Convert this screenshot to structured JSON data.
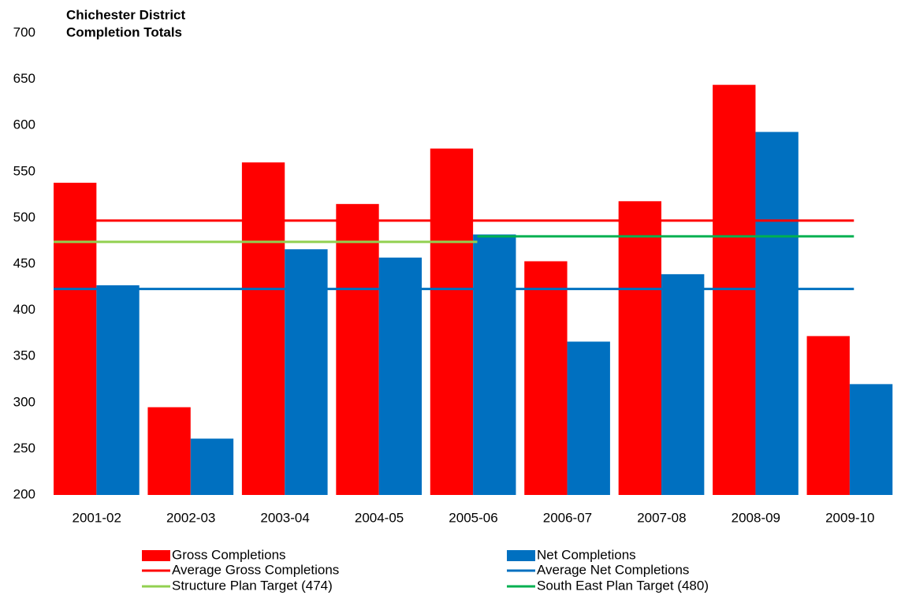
{
  "chart_data": {
    "type": "bar",
    "title": [
      "Chichester District",
      "Completion Totals"
    ],
    "categories": [
      "2001-02",
      "2002-03",
      "2003-04",
      "2004-05",
      "2005-06",
      "2006-07",
      "2007-08",
      "2008-09",
      "2009-10"
    ],
    "series": [
      {
        "name": "Gross Completions",
        "type": "bar",
        "color": "#ff0000",
        "values": [
          538,
          295,
          560,
          515,
          575,
          453,
          518,
          644,
          372
        ]
      },
      {
        "name": "Net Completions",
        "type": "bar",
        "color": "#0070c0",
        "values": [
          427,
          261,
          466,
          457,
          482,
          366,
          439,
          593,
          320
        ]
      },
      {
        "name": "Average Gross Completions",
        "type": "line",
        "color": "#ff0000",
        "values": [
          497,
          497,
          497,
          497,
          497,
          497,
          497,
          497,
          497
        ]
      },
      {
        "name": "Average Net Completions",
        "type": "line",
        "color": "#0070c0",
        "values": [
          423,
          423,
          423,
          423,
          423,
          423,
          423,
          423,
          423
        ]
      },
      {
        "name": "Structure Plan Target (474)",
        "type": "line",
        "color": "#92d050",
        "values": [
          474,
          474,
          474,
          474,
          474,
          null,
          null,
          null,
          null
        ]
      },
      {
        "name": "South East Plan Target (480)",
        "type": "line",
        "color": "#00b050",
        "values": [
          null,
          null,
          null,
          null,
          480,
          480,
          480,
          480,
          480
        ]
      }
    ],
    "ylim": [
      200,
      700
    ],
    "yticks": [
      200,
      250,
      300,
      350,
      400,
      450,
      500,
      550,
      600,
      650,
      700
    ],
    "grid": false
  }
}
